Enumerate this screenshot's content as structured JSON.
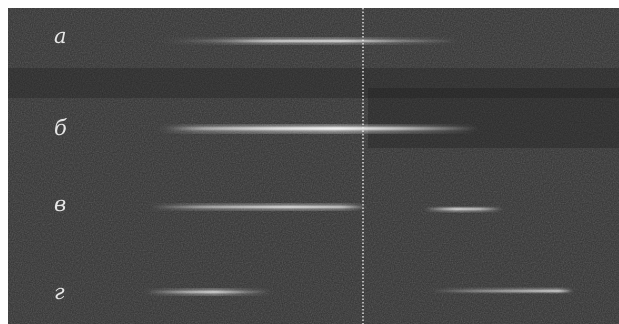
{
  "spectra": {
    "labels": [
      "а",
      "б",
      "в",
      "г"
    ]
  },
  "colors": {
    "background": "#2b2b2b",
    "line": "#ffffff",
    "label": "#e6e6e6"
  }
}
